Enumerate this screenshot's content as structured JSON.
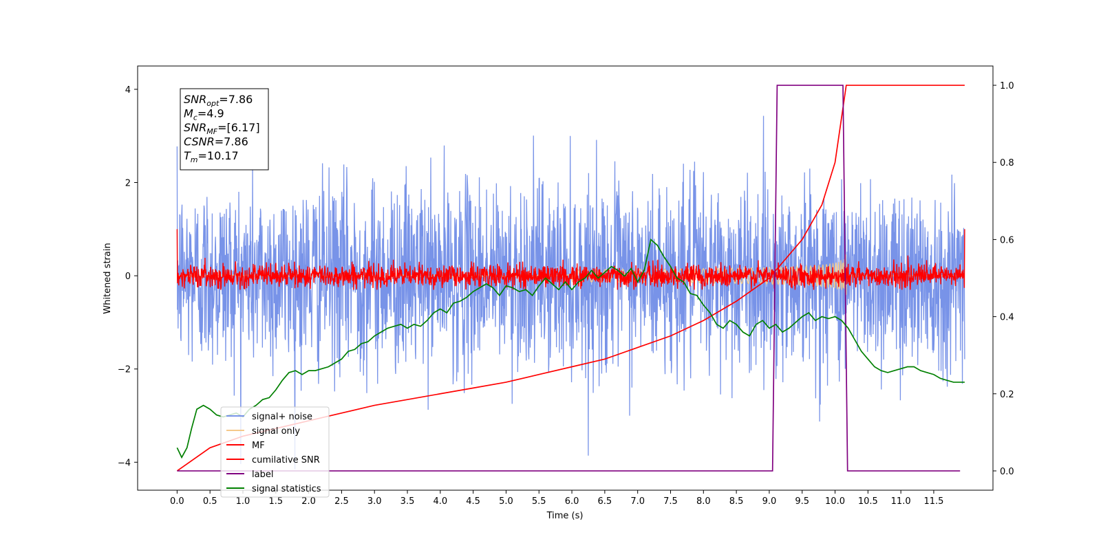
{
  "chart_data": {
    "type": "line",
    "xlabel": "Time (s)",
    "ylabel": "Whitened strain",
    "xlim": [
      -0.6,
      12.4
    ],
    "ylim": [
      -4.6,
      4.5
    ],
    "y2lim": [
      -0.05,
      1.05
    ],
    "xticks": [
      "0.0",
      "0.5",
      "1.0",
      "1.5",
      "2.0",
      "2.5",
      "3.0",
      "3.5",
      "4.0",
      "4.5",
      "5.0",
      "5.5",
      "6.0",
      "6.5",
      "7.0",
      "7.5",
      "8.0",
      "8.5",
      "9.0",
      "9.5",
      "10.0",
      "10.5",
      "11.0",
      "11.5"
    ],
    "yticks": [
      "4",
      "2",
      "0",
      "−2",
      "−4"
    ],
    "y2ticks": [
      "0.0",
      "0.2",
      "0.4",
      "0.6",
      "0.8",
      "1.0"
    ],
    "grid": false,
    "legend_placement": "lower-left",
    "annotation": {
      "lines": [
        {
          "base": "SNR",
          "sub": "opt",
          "rest": "=7.86"
        },
        {
          "base": "M",
          "sub": "c",
          "rest": "=4.9"
        },
        {
          "base": "SNR",
          "sub": "MF",
          "rest": "=[6.17]"
        },
        {
          "base": "CSNR",
          "sub": "",
          "rest": "=7.86"
        },
        {
          "base": "T",
          "sub": "m",
          "rest": "=10.17"
        }
      ]
    },
    "series": [
      {
        "name": "signal+ noise",
        "color": "#7893e8",
        "axis": "left",
        "kind": "noise",
        "x_range": [
          0,
          11.97
        ],
        "amplitude_std": 1.0,
        "y_range": [
          -4.15,
          4.05
        ]
      },
      {
        "name": "signal only",
        "color": "#f5c98a",
        "axis": "left",
        "kind": "chirp",
        "x_range": [
          0,
          11.97
        ],
        "merger_time": 10.17,
        "peak_amplitude": 0.5
      },
      {
        "name": "MF",
        "color": "#ff0000",
        "axis": "left",
        "kind": "noise",
        "x_range": [
          0,
          11.97
        ],
        "amplitude_std": 0.12,
        "y_range": [
          -0.3,
          0.6
        ],
        "edge_values": [
          1.0,
          1.0
        ]
      },
      {
        "name": "cumilative SNR",
        "color": "#ff0000",
        "axis": "right",
        "x": [
          0.0,
          0.5,
          1.0,
          1.5,
          2.0,
          2.5,
          3.0,
          3.5,
          4.0,
          4.5,
          5.0,
          5.5,
          6.0,
          6.5,
          7.0,
          7.5,
          8.0,
          8.5,
          9.0,
          9.5,
          9.8,
          10.0,
          10.17,
          11.97
        ],
        "y": [
          0.0,
          0.06,
          0.09,
          0.11,
          0.13,
          0.15,
          0.17,
          0.185,
          0.2,
          0.215,
          0.23,
          0.25,
          0.27,
          0.29,
          0.32,
          0.35,
          0.39,
          0.44,
          0.5,
          0.6,
          0.69,
          0.8,
          1.0,
          1.0
        ]
      },
      {
        "name": "label",
        "color": "#800080",
        "axis": "right",
        "x": [
          0.0,
          9.05,
          9.12,
          10.12,
          10.19,
          11.9
        ],
        "y": [
          0,
          0,
          1,
          1,
          0,
          0
        ]
      },
      {
        "name": "signal statistics",
        "color": "#008000",
        "axis": "right",
        "x": [
          0.0,
          0.07,
          0.15,
          0.22,
          0.3,
          0.4,
          0.5,
          0.6,
          0.7,
          0.8,
          0.9,
          1.0,
          1.1,
          1.2,
          1.3,
          1.4,
          1.5,
          1.6,
          1.7,
          1.8,
          1.9,
          2.0,
          2.1,
          2.2,
          2.3,
          2.4,
          2.5,
          2.6,
          2.7,
          2.8,
          2.9,
          3.0,
          3.1,
          3.2,
          3.3,
          3.4,
          3.5,
          3.6,
          3.7,
          3.8,
          3.9,
          4.0,
          4.1,
          4.2,
          4.3,
          4.4,
          4.5,
          4.6,
          4.7,
          4.8,
          4.9,
          5.0,
          5.1,
          5.2,
          5.3,
          5.4,
          5.5,
          5.6,
          5.7,
          5.8,
          5.9,
          6.0,
          6.1,
          6.2,
          6.3,
          6.4,
          6.5,
          6.6,
          6.7,
          6.8,
          6.9,
          7.0,
          7.1,
          7.2,
          7.3,
          7.4,
          7.5,
          7.6,
          7.7,
          7.8,
          7.9,
          8.0,
          8.1,
          8.2,
          8.3,
          8.4,
          8.5,
          8.6,
          8.7,
          8.8,
          8.9,
          9.0,
          9.1,
          9.2,
          9.3,
          9.4,
          9.5,
          9.6,
          9.7,
          9.8,
          9.9,
          10.0,
          10.1,
          10.2,
          10.3,
          10.4,
          10.5,
          10.6,
          10.7,
          10.8,
          10.9,
          11.0,
          11.1,
          11.2,
          11.3,
          11.4,
          11.5,
          11.6,
          11.7,
          11.8,
          11.97
        ],
        "y": [
          0.06,
          0.035,
          0.06,
          0.11,
          0.16,
          0.17,
          0.16,
          0.145,
          0.14,
          0.145,
          0.15,
          0.14,
          0.16,
          0.17,
          0.185,
          0.19,
          0.21,
          0.235,
          0.255,
          0.26,
          0.25,
          0.26,
          0.26,
          0.265,
          0.27,
          0.28,
          0.29,
          0.31,
          0.315,
          0.33,
          0.335,
          0.35,
          0.36,
          0.37,
          0.375,
          0.38,
          0.37,
          0.38,
          0.375,
          0.39,
          0.41,
          0.42,
          0.41,
          0.435,
          0.44,
          0.45,
          0.465,
          0.475,
          0.485,
          0.475,
          0.455,
          0.48,
          0.475,
          0.465,
          0.47,
          0.455,
          0.48,
          0.5,
          0.485,
          0.47,
          0.49,
          0.47,
          0.49,
          0.5,
          0.52,
          0.5,
          0.515,
          0.53,
          0.52,
          0.505,
          0.525,
          0.49,
          0.52,
          0.6,
          0.585,
          0.555,
          0.53,
          0.5,
          0.49,
          0.46,
          0.455,
          0.43,
          0.41,
          0.38,
          0.37,
          0.39,
          0.38,
          0.36,
          0.35,
          0.38,
          0.39,
          0.37,
          0.38,
          0.36,
          0.37,
          0.385,
          0.4,
          0.41,
          0.39,
          0.4,
          0.395,
          0.4,
          0.39,
          0.37,
          0.34,
          0.31,
          0.29,
          0.27,
          0.26,
          0.255,
          0.26,
          0.265,
          0.27,
          0.27,
          0.26,
          0.255,
          0.25,
          0.24,
          0.235,
          0.23,
          0.23
        ]
      }
    ]
  }
}
